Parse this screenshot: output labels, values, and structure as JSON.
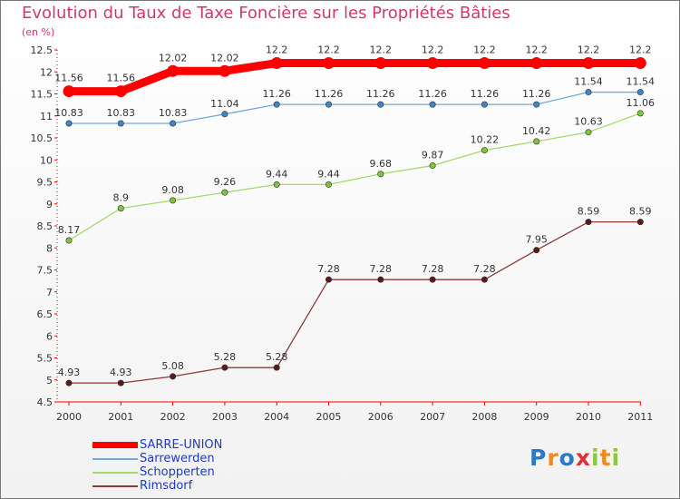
{
  "title": "Evolution du Taux de Taxe Foncière sur les Propriétés Bâties",
  "unit_label": "(en %)",
  "logo": {
    "text": "Proxiti",
    "letters": [
      {
        "ch": "P",
        "color": "#2e78c8"
      },
      {
        "ch": "r",
        "color": "#f08a1c"
      },
      {
        "ch": "o",
        "color": "#2e78c8"
      },
      {
        "ch": "x",
        "color": "#e0303b"
      },
      {
        "ch": "i",
        "color": "#8dc63f"
      },
      {
        "ch": "t",
        "color": "#f08a1c"
      },
      {
        "ch": "i",
        "color": "#8dc63f"
      }
    ]
  },
  "chart_data": {
    "type": "line",
    "title": "Evolution du Taux de Taxe Foncière sur les Propriétés Bâties",
    "xlabel": "",
    "ylabel": "(en %)",
    "x": [
      "2000",
      "2001",
      "2002",
      "2003",
      "2004",
      "2005",
      "2006",
      "2007",
      "2008",
      "2009",
      "2010",
      "2011"
    ],
    "ylim": [
      4.5,
      12.5
    ],
    "yticks": [
      "4.5",
      "5",
      "5.5",
      "6",
      "6.5",
      "7",
      "7.5",
      "8",
      "8.5",
      "9",
      "9.5",
      "10",
      "10.5",
      "11",
      "11.5",
      "12",
      "12.5"
    ],
    "grid": false,
    "legend_position": "bottom-left",
    "series": [
      {
        "name": "SARRE-UNION",
        "color": "#ff0000",
        "marker_color": "#ff0000",
        "emphasis": true,
        "values": [
          11.56,
          11.56,
          12.02,
          12.02,
          12.2,
          12.2,
          12.2,
          12.2,
          12.2,
          12.2,
          12.2,
          12.2
        ],
        "labels": [
          "11.56",
          "11.56",
          "12.02",
          "12.02",
          "12.2",
          "12.2",
          "12.2",
          "12.2",
          "12.2",
          "12.2",
          "12.2",
          "12.2"
        ]
      },
      {
        "name": "Sarrewerden",
        "color": "#6fa8dc",
        "marker_color": "#3b87c9",
        "emphasis": false,
        "values": [
          10.83,
          10.83,
          10.83,
          11.04,
          11.26,
          11.26,
          11.26,
          11.26,
          11.26,
          11.26,
          11.54,
          11.54
        ],
        "labels": [
          "10.83",
          "10.83",
          "10.83",
          "11.04",
          "11.26",
          "11.26",
          "11.26",
          "11.26",
          "11.26",
          "11.26",
          "11.54",
          "11.54"
        ]
      },
      {
        "name": "Schopperten",
        "color": "#a6d96a",
        "marker_color": "#7ec43c",
        "emphasis": false,
        "values": [
          8.17,
          8.9,
          9.08,
          9.26,
          9.44,
          9.44,
          9.68,
          9.87,
          10.22,
          10.42,
          10.63,
          11.06
        ],
        "labels": [
          "8.17",
          "8.9",
          "9.08",
          "9.26",
          "9.44",
          "9.44",
          "9.68",
          "9.87",
          "10.22",
          "10.42",
          "10.63",
          "11.06"
        ]
      },
      {
        "name": "Rimsdorf",
        "color": "#8b3a3a",
        "marker_color": "#5a1a1a",
        "emphasis": false,
        "values": [
          4.93,
          4.93,
          5.08,
          5.28,
          5.28,
          7.28,
          7.28,
          7.28,
          7.28,
          7.95,
          8.59,
          8.59
        ],
        "labels": [
          "4.93",
          "4.93",
          "5.08",
          "5.28",
          "5.28",
          "7.28",
          "7.28",
          "7.28",
          "7.28",
          "7.95",
          "8.59",
          "8.59"
        ]
      }
    ]
  }
}
